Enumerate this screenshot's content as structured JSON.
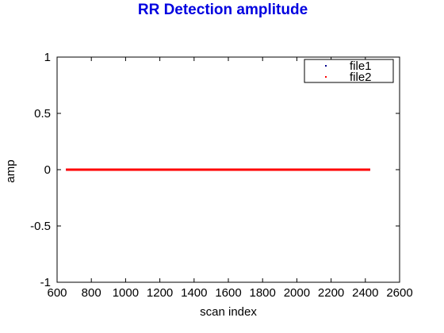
{
  "chart_data": {
    "type": "scatter",
    "title": "RR Detection amplitude",
    "xlabel": "scan index",
    "ylabel": "amp",
    "xlim": [
      600,
      2600
    ],
    "ylim": [
      -1,
      1
    ],
    "xticks": [
      600,
      800,
      1000,
      1200,
      1400,
      1600,
      1800,
      2000,
      2200,
      2400,
      2600
    ],
    "yticks": [
      -1,
      -0.5,
      0,
      0.5,
      1
    ],
    "xtick_labels": [
      "600",
      "800",
      "1000",
      "1200",
      "1400",
      "1600",
      "1800",
      "2000",
      "2200",
      "2400",
      "2600"
    ],
    "ytick_labels": [
      "-1",
      "-0.5",
      "0",
      "0.5",
      "1"
    ],
    "grid": false,
    "legend_position": "top-right",
    "series": [
      {
        "name": "file1",
        "x_range": [
          652,
          2428
        ],
        "value": 0,
        "color": "#00008b"
      },
      {
        "name": "file2",
        "x_range": [
          652,
          2428
        ],
        "value": 0,
        "color": "#ff0000"
      }
    ]
  },
  "colors": {
    "title": "#0000e0",
    "axes": "#000000"
  }
}
